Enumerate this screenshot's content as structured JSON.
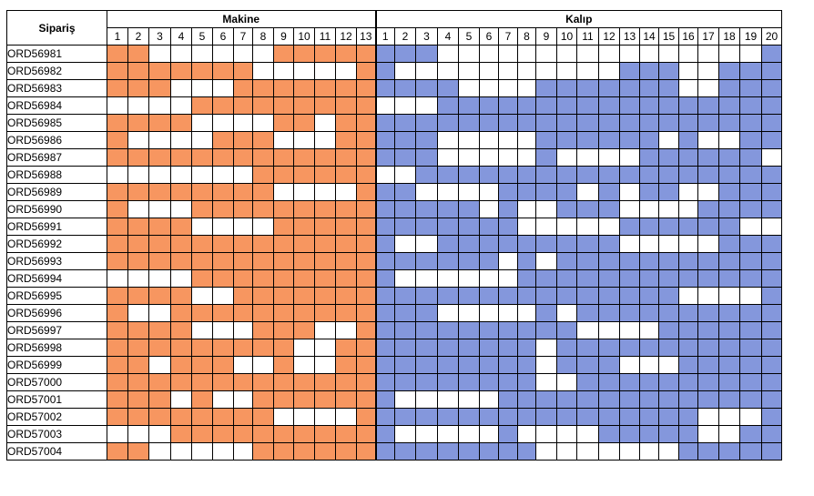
{
  "colors": {
    "makine_on": "#f79660",
    "kalip_on": "#8497dc",
    "off": "#ffffff"
  },
  "headers": {
    "siparis": "Sipariş",
    "makine": "Makine",
    "kalip": "Kalıp"
  },
  "makine_columns": [
    "1",
    "2",
    "3",
    "4",
    "5",
    "6",
    "7",
    "8",
    "9",
    "10",
    "11",
    "12",
    "13"
  ],
  "kalip_columns": [
    "1",
    "2",
    "3",
    "4",
    "5",
    "6",
    "7",
    "8",
    "9",
    "10",
    "11",
    "12",
    "13",
    "14",
    "15",
    "16",
    "17",
    "18",
    "19",
    "20"
  ],
  "rows": [
    {
      "id": "ORD56981",
      "makine": [
        1,
        1,
        0,
        0,
        0,
        0,
        0,
        0,
        1,
        1,
        1,
        1,
        1
      ],
      "kalip": [
        1,
        1,
        1,
        0,
        0,
        0,
        0,
        0,
        0,
        0,
        0,
        0,
        0,
        0,
        0,
        0,
        0,
        0,
        0,
        1
      ]
    },
    {
      "id": "ORD56982",
      "makine": [
        1,
        1,
        1,
        1,
        1,
        1,
        1,
        0,
        0,
        0,
        0,
        0,
        1
      ],
      "kalip": [
        1,
        0,
        0,
        0,
        0,
        0,
        0,
        0,
        0,
        0,
        0,
        0,
        1,
        1,
        1,
        0,
        0,
        1,
        1,
        1
      ]
    },
    {
      "id": "ORD56983",
      "makine": [
        1,
        1,
        1,
        0,
        0,
        0,
        1,
        1,
        1,
        1,
        1,
        1,
        1
      ],
      "kalip": [
        1,
        1,
        1,
        1,
        0,
        0,
        0,
        0,
        1,
        1,
        1,
        1,
        1,
        1,
        1,
        0,
        0,
        1,
        1,
        1
      ]
    },
    {
      "id": "ORD56984",
      "makine": [
        0,
        0,
        0,
        0,
        1,
        1,
        1,
        1,
        1,
        1,
        1,
        1,
        1
      ],
      "kalip": [
        0,
        0,
        0,
        1,
        1,
        1,
        1,
        1,
        1,
        1,
        1,
        1,
        1,
        1,
        1,
        1,
        1,
        1,
        1,
        1
      ]
    },
    {
      "id": "ORD56985",
      "makine": [
        1,
        1,
        1,
        1,
        0,
        0,
        0,
        0,
        1,
        1,
        0,
        1,
        1
      ],
      "kalip": [
        1,
        1,
        1,
        1,
        1,
        1,
        1,
        1,
        1,
        1,
        1,
        1,
        1,
        1,
        1,
        1,
        1,
        1,
        1,
        1
      ]
    },
    {
      "id": "ORD56986",
      "makine": [
        1,
        0,
        0,
        0,
        0,
        1,
        1,
        1,
        0,
        0,
        0,
        1,
        1
      ],
      "kalip": [
        1,
        1,
        1,
        0,
        0,
        0,
        0,
        0,
        1,
        1,
        1,
        1,
        1,
        1,
        0,
        1,
        0,
        0,
        1,
        1
      ]
    },
    {
      "id": "ORD56987",
      "makine": [
        1,
        1,
        1,
        1,
        1,
        1,
        1,
        1,
        1,
        1,
        1,
        1,
        1
      ],
      "kalip": [
        1,
        1,
        1,
        0,
        0,
        0,
        0,
        0,
        1,
        0,
        0,
        0,
        0,
        1,
        1,
        1,
        1,
        1,
        1,
        0
      ]
    },
    {
      "id": "ORD56988",
      "makine": [
        0,
        0,
        0,
        0,
        0,
        0,
        0,
        1,
        1,
        1,
        1,
        1,
        1
      ],
      "kalip": [
        0,
        0,
        1,
        1,
        1,
        1,
        1,
        1,
        1,
        1,
        1,
        1,
        1,
        1,
        1,
        1,
        1,
        1,
        1,
        1
      ]
    },
    {
      "id": "ORD56989",
      "makine": [
        1,
        1,
        1,
        1,
        1,
        1,
        1,
        1,
        0,
        0,
        0,
        0,
        1
      ],
      "kalip": [
        1,
        1,
        0,
        0,
        0,
        0,
        1,
        1,
        1,
        1,
        0,
        1,
        0,
        1,
        1,
        0,
        0,
        1,
        1,
        1
      ]
    },
    {
      "id": "ORD56990",
      "makine": [
        1,
        0,
        0,
        0,
        1,
        1,
        1,
        1,
        1,
        1,
        1,
        1,
        1
      ],
      "kalip": [
        1,
        1,
        1,
        1,
        1,
        0,
        1,
        0,
        0,
        1,
        1,
        1,
        0,
        0,
        0,
        0,
        1,
        1,
        1,
        1
      ]
    },
    {
      "id": "ORD56991",
      "makine": [
        1,
        1,
        1,
        1,
        0,
        0,
        0,
        0,
        1,
        1,
        1,
        1,
        1
      ],
      "kalip": [
        1,
        1,
        1,
        1,
        1,
        1,
        1,
        0,
        0,
        0,
        0,
        0,
        1,
        1,
        1,
        1,
        1,
        1,
        0,
        0
      ]
    },
    {
      "id": "ORD56992",
      "makine": [
        1,
        1,
        1,
        1,
        1,
        1,
        1,
        1,
        1,
        1,
        1,
        1,
        1
      ],
      "kalip": [
        1,
        0,
        0,
        1,
        1,
        1,
        1,
        1,
        1,
        1,
        1,
        1,
        0,
        0,
        0,
        0,
        0,
        1,
        1,
        1
      ]
    },
    {
      "id": "ORD56993",
      "makine": [
        1,
        1,
        1,
        1,
        1,
        1,
        1,
        1,
        1,
        1,
        1,
        1,
        1
      ],
      "kalip": [
        1,
        1,
        1,
        1,
        1,
        1,
        0,
        1,
        0,
        1,
        1,
        1,
        1,
        1,
        1,
        1,
        1,
        1,
        1,
        1
      ]
    },
    {
      "id": "ORD56994",
      "makine": [
        0,
        0,
        0,
        0,
        1,
        1,
        1,
        1,
        1,
        1,
        1,
        1,
        1
      ],
      "kalip": [
        1,
        0,
        0,
        0,
        0,
        0,
        0,
        1,
        1,
        1,
        1,
        1,
        1,
        1,
        1,
        1,
        1,
        1,
        1,
        1
      ]
    },
    {
      "id": "ORD56995",
      "makine": [
        1,
        1,
        1,
        1,
        0,
        0,
        1,
        1,
        1,
        1,
        1,
        1,
        1
      ],
      "kalip": [
        1,
        1,
        1,
        1,
        1,
        1,
        1,
        1,
        1,
        1,
        1,
        1,
        1,
        1,
        1,
        0,
        0,
        0,
        0,
        1
      ]
    },
    {
      "id": "ORD56996",
      "makine": [
        1,
        0,
        0,
        1,
        1,
        1,
        1,
        1,
        1,
        1,
        1,
        1,
        1
      ],
      "kalip": [
        1,
        1,
        1,
        0,
        0,
        0,
        0,
        0,
        1,
        0,
        1,
        1,
        1,
        1,
        1,
        1,
        1,
        1,
        1,
        1
      ]
    },
    {
      "id": "ORD56997",
      "makine": [
        1,
        1,
        1,
        1,
        0,
        0,
        0,
        1,
        1,
        1,
        0,
        0,
        1
      ],
      "kalip": [
        1,
        1,
        1,
        1,
        1,
        1,
        1,
        1,
        1,
        1,
        0,
        0,
        0,
        0,
        1,
        1,
        1,
        1,
        1,
        1
      ]
    },
    {
      "id": "ORD56998",
      "makine": [
        1,
        1,
        1,
        1,
        1,
        1,
        1,
        1,
        1,
        0,
        0,
        1,
        1
      ],
      "kalip": [
        1,
        1,
        1,
        1,
        1,
        1,
        1,
        1,
        0,
        1,
        1,
        1,
        1,
        1,
        1,
        1,
        1,
        1,
        1,
        1
      ]
    },
    {
      "id": "ORD56999",
      "makine": [
        1,
        1,
        0,
        1,
        1,
        1,
        0,
        0,
        1,
        0,
        0,
        1,
        1
      ],
      "kalip": [
        1,
        1,
        1,
        1,
        1,
        1,
        1,
        1,
        0,
        1,
        1,
        1,
        0,
        0,
        0,
        1,
        1,
        1,
        1,
        1
      ]
    },
    {
      "id": "ORD57000",
      "makine": [
        1,
        1,
        1,
        1,
        1,
        1,
        1,
        1,
        1,
        1,
        1,
        1,
        1
      ],
      "kalip": [
        1,
        1,
        1,
        1,
        1,
        1,
        1,
        1,
        0,
        0,
        1,
        1,
        1,
        1,
        1,
        1,
        1,
        1,
        1,
        1
      ]
    },
    {
      "id": "ORD57001",
      "makine": [
        1,
        1,
        1,
        0,
        1,
        0,
        0,
        1,
        1,
        1,
        1,
        1,
        1
      ],
      "kalip": [
        1,
        0,
        0,
        0,
        0,
        0,
        1,
        1,
        1,
        1,
        1,
        1,
        1,
        1,
        1,
        1,
        1,
        1,
        1,
        1
      ]
    },
    {
      "id": "ORD57002",
      "makine": [
        1,
        1,
        1,
        1,
        1,
        1,
        1,
        1,
        0,
        0,
        0,
        0,
        1
      ],
      "kalip": [
        1,
        1,
        1,
        1,
        1,
        1,
        1,
        1,
        1,
        1,
        1,
        1,
        1,
        1,
        1,
        1,
        0,
        0,
        0,
        1
      ]
    },
    {
      "id": "ORD57003",
      "makine": [
        0,
        0,
        0,
        1,
        1,
        1,
        1,
        1,
        1,
        1,
        1,
        1,
        1
      ],
      "kalip": [
        1,
        0,
        0,
        0,
        0,
        0,
        1,
        0,
        0,
        0,
        0,
        1,
        1,
        1,
        1,
        1,
        0,
        0,
        1,
        1
      ]
    },
    {
      "id": "ORD57004",
      "makine": [
        1,
        1,
        0,
        0,
        0,
        0,
        0,
        1,
        1,
        1,
        1,
        1,
        1
      ],
      "kalip": [
        1,
        1,
        1,
        1,
        1,
        1,
        1,
        1,
        0,
        0,
        0,
        0,
        0,
        0,
        0,
        1,
        1,
        1,
        1,
        1
      ]
    }
  ]
}
